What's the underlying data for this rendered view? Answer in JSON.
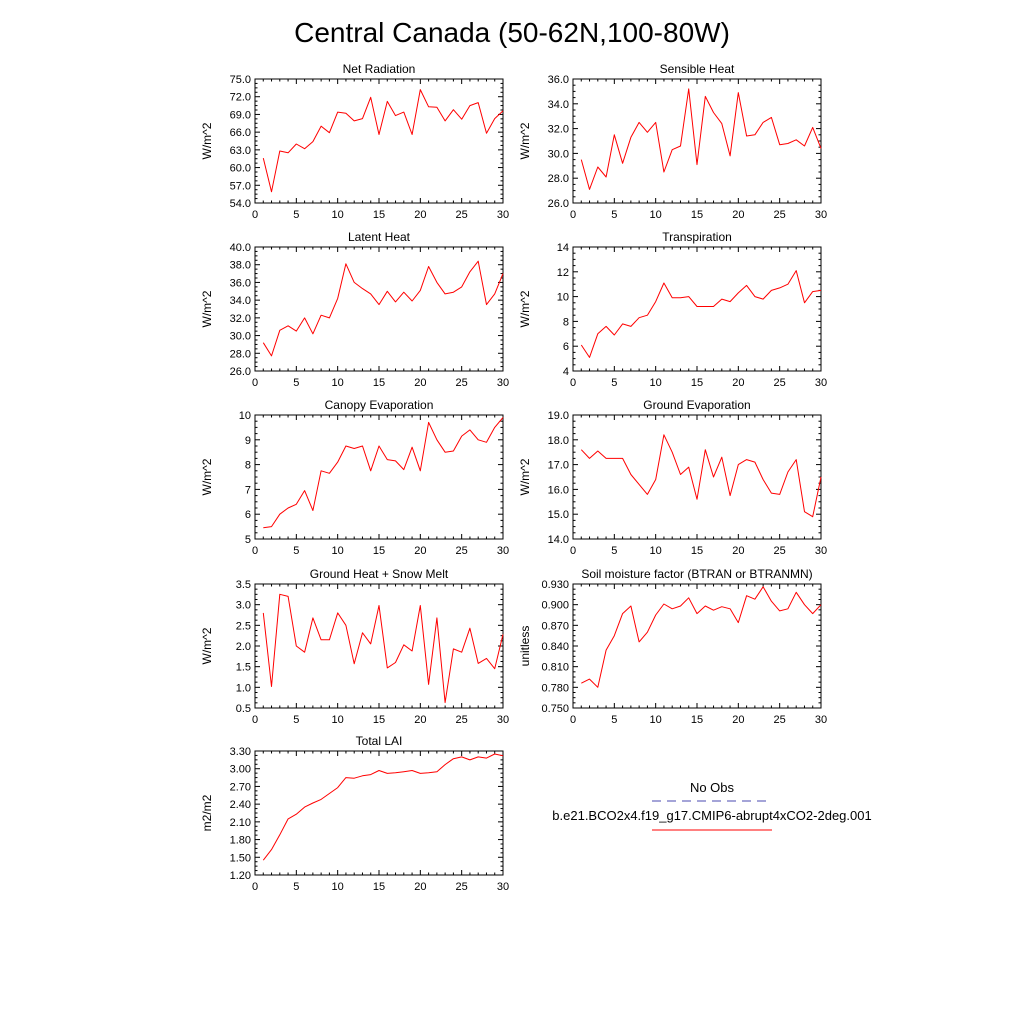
{
  "figure": {
    "title": "Central Canada (50-62N,100-80W)",
    "series_color": "#ff0000",
    "obs_color": "#4a4ab0"
  },
  "legend": {
    "obs_label": "No Obs",
    "model_label": "b.e21.BCO2x4.f19_g17.CMIP6-abrupt4xCO2-2deg.001"
  },
  "chart_data": [
    {
      "type": "line",
      "title": "Net Radiation",
      "ylabel": "W/m^2",
      "xlim": [
        0,
        30
      ],
      "xticks": [
        0,
        5,
        10,
        15,
        20,
        25,
        30
      ],
      "ylim": [
        54,
        75
      ],
      "yticks": [
        54,
        57,
        60,
        63,
        66,
        69,
        72,
        75
      ],
      "ydec": 1,
      "x": [
        1,
        2,
        3,
        4,
        5,
        6,
        7,
        8,
        9,
        10,
        11,
        12,
        13,
        14,
        15,
        16,
        17,
        18,
        19,
        20,
        21,
        22,
        23,
        24,
        25,
        26,
        27,
        28,
        29,
        30
      ],
      "y": [
        61.6,
        55.9,
        62.8,
        62.5,
        64.0,
        63.2,
        64.4,
        67.0,
        65.9,
        69.4,
        69.2,
        67.9,
        68.3,
        71.9,
        65.6,
        71.2,
        68.8,
        69.4,
        65.6,
        73.2,
        70.3,
        70.2,
        67.9,
        69.8,
        68.2,
        70.5,
        71.0,
        65.8,
        68.3,
        69.6
      ],
      "series_name": ""
    },
    {
      "type": "line",
      "title": "Sensible Heat",
      "ylabel": "W/m^2",
      "xlim": [
        0,
        30
      ],
      "xticks": [
        0,
        5,
        10,
        15,
        20,
        25,
        30
      ],
      "ylim": [
        26,
        36
      ],
      "yticks": [
        26,
        28,
        30,
        32,
        34,
        36
      ],
      "ydec": 1,
      "x": [
        1,
        2,
        3,
        4,
        5,
        6,
        7,
        8,
        9,
        10,
        11,
        12,
        13,
        14,
        15,
        16,
        17,
        18,
        19,
        20,
        21,
        22,
        23,
        24,
        25,
        26,
        27,
        28,
        29,
        30
      ],
      "y": [
        29.5,
        27.1,
        28.9,
        28.1,
        31.5,
        29.2,
        31.3,
        32.5,
        31.7,
        32.5,
        28.5,
        30.3,
        30.6,
        35.2,
        29.1,
        34.6,
        33.3,
        32.4,
        29.8,
        34.9,
        31.4,
        31.5,
        32.5,
        32.9,
        30.7,
        30.8,
        31.1,
        30.6,
        32.1,
        30.4
      ],
      "series_name": ""
    },
    {
      "type": "line",
      "title": "Latent Heat",
      "ylabel": "W/m^2",
      "xlim": [
        0,
        30
      ],
      "xticks": [
        0,
        5,
        10,
        15,
        20,
        25,
        30
      ],
      "ylim": [
        26,
        40
      ],
      "yticks": [
        26,
        28,
        30,
        32,
        34,
        36,
        38,
        40
      ],
      "ydec": 1,
      "x": [
        1,
        2,
        3,
        4,
        5,
        6,
        7,
        8,
        9,
        10,
        11,
        12,
        13,
        14,
        15,
        16,
        17,
        18,
        19,
        20,
        21,
        22,
        23,
        24,
        25,
        26,
        27,
        28,
        29,
        30
      ],
      "y": [
        29.2,
        27.7,
        30.6,
        31.1,
        30.5,
        32.0,
        30.2,
        32.3,
        32.0,
        34.2,
        38.1,
        36.0,
        35.3,
        34.7,
        33.5,
        35.0,
        33.8,
        34.9,
        33.9,
        35.1,
        37.8,
        36.0,
        34.7,
        34.9,
        35.5,
        37.2,
        38.4,
        33.5,
        34.7,
        37.0
      ],
      "series_name": ""
    },
    {
      "type": "line",
      "title": "Transpiration",
      "ylabel": "W/m^2",
      "xlim": [
        0,
        30
      ],
      "xticks": [
        0,
        5,
        10,
        15,
        20,
        25,
        30
      ],
      "ylim": [
        4,
        14
      ],
      "yticks": [
        4,
        6,
        8,
        10,
        12,
        14
      ],
      "ydec": 0,
      "x": [
        1,
        2,
        3,
        4,
        5,
        6,
        7,
        8,
        9,
        10,
        11,
        12,
        13,
        14,
        15,
        16,
        17,
        18,
        19,
        20,
        21,
        22,
        23,
        24,
        25,
        26,
        27,
        28,
        29,
        30
      ],
      "y": [
        6.1,
        5.1,
        7.0,
        7.6,
        6.9,
        7.8,
        7.6,
        8.3,
        8.5,
        9.6,
        11.1,
        9.9,
        9.9,
        10.0,
        9.2,
        9.2,
        9.2,
        9.8,
        9.6,
        10.3,
        10.9,
        10.0,
        9.8,
        10.5,
        10.7,
        11.0,
        12.1,
        9.5,
        10.4,
        10.5
      ],
      "series_name": ""
    },
    {
      "type": "line",
      "title": "Canopy Evaporation",
      "ylabel": "W/m^2",
      "xlim": [
        0,
        30
      ],
      "xticks": [
        0,
        5,
        10,
        15,
        20,
        25,
        30
      ],
      "ylim": [
        5,
        10
      ],
      "yticks": [
        5,
        6,
        7,
        8,
        9,
        10
      ],
      "ydec": 0,
      "x": [
        1,
        2,
        3,
        4,
        5,
        6,
        7,
        8,
        9,
        10,
        11,
        12,
        13,
        14,
        15,
        16,
        17,
        18,
        19,
        20,
        21,
        22,
        23,
        24,
        25,
        26,
        27,
        28,
        29,
        30
      ],
      "y": [
        5.45,
        5.5,
        6.0,
        6.25,
        6.4,
        6.95,
        6.15,
        7.75,
        7.65,
        8.1,
        8.75,
        8.65,
        8.75,
        7.75,
        8.75,
        8.2,
        8.15,
        7.8,
        8.7,
        7.75,
        9.7,
        9.0,
        8.5,
        8.55,
        9.15,
        9.4,
        9.0,
        8.9,
        9.5,
        9.9
      ],
      "series_name": ""
    },
    {
      "type": "line",
      "title": "Ground Evaporation",
      "ylabel": "W/m^2",
      "xlim": [
        0,
        30
      ],
      "xticks": [
        0,
        5,
        10,
        15,
        20,
        25,
        30
      ],
      "ylim": [
        14,
        19
      ],
      "yticks": [
        14,
        15,
        16,
        17,
        18,
        19
      ],
      "ydec": 1,
      "x": [
        1,
        2,
        3,
        4,
        5,
        6,
        7,
        8,
        9,
        10,
        11,
        12,
        13,
        14,
        15,
        16,
        17,
        18,
        19,
        20,
        21,
        22,
        23,
        24,
        25,
        26,
        27,
        28,
        29,
        30
      ],
      "y": [
        17.6,
        17.25,
        17.55,
        17.25,
        17.25,
        17.25,
        16.6,
        16.2,
        15.8,
        16.4,
        18.2,
        17.5,
        16.6,
        16.9,
        15.6,
        17.6,
        16.5,
        17.3,
        15.75,
        17.0,
        17.2,
        17.1,
        16.4,
        15.85,
        15.8,
        16.7,
        17.2,
        15.1,
        14.9,
        16.5
      ],
      "series_name": ""
    },
    {
      "type": "line",
      "title": "Ground Heat + Snow Melt",
      "ylabel": "W/m^2",
      "xlim": [
        0,
        30
      ],
      "xticks": [
        0,
        5,
        10,
        15,
        20,
        25,
        30
      ],
      "ylim": [
        0.5,
        3.5
      ],
      "yticks": [
        0.5,
        1.0,
        1.5,
        2.0,
        2.5,
        3.0,
        3.5
      ],
      "ydec": 1,
      "x": [
        1,
        2,
        3,
        4,
        5,
        6,
        7,
        8,
        9,
        10,
        11,
        12,
        13,
        14,
        15,
        16,
        17,
        18,
        19,
        20,
        21,
        22,
        23,
        24,
        25,
        26,
        27,
        28,
        29,
        30
      ],
      "y": [
        2.8,
        1.02,
        3.25,
        3.2,
        2.0,
        1.85,
        2.68,
        2.15,
        2.15,
        2.8,
        2.5,
        1.57,
        2.32,
        2.05,
        2.98,
        1.47,
        1.6,
        2.03,
        1.88,
        2.98,
        1.07,
        2.68,
        0.63,
        1.93,
        1.85,
        2.43,
        1.58,
        1.7,
        1.45,
        2.28
      ],
      "series_name": ""
    },
    {
      "type": "line",
      "title": "Soil moisture factor (BTRAN or BTRANMN)",
      "ylabel": "unitless",
      "xlim": [
        0,
        30
      ],
      "xticks": [
        0,
        5,
        10,
        15,
        20,
        25,
        30
      ],
      "ylim": [
        0.75,
        0.93
      ],
      "yticks": [
        0.75,
        0.78,
        0.81,
        0.84,
        0.87,
        0.9,
        0.93
      ],
      "ydec": 3,
      "x": [
        1,
        2,
        3,
        4,
        5,
        6,
        7,
        8,
        9,
        10,
        11,
        12,
        13,
        14,
        15,
        16,
        17,
        18,
        19,
        20,
        21,
        22,
        23,
        24,
        25,
        26,
        27,
        28,
        29,
        30
      ],
      "y": [
        0.786,
        0.792,
        0.78,
        0.834,
        0.855,
        0.887,
        0.898,
        0.846,
        0.86,
        0.885,
        0.901,
        0.894,
        0.898,
        0.91,
        0.887,
        0.898,
        0.892,
        0.897,
        0.894,
        0.874,
        0.913,
        0.908,
        0.926,
        0.905,
        0.891,
        0.894,
        0.918,
        0.9,
        0.887,
        0.9
      ],
      "series_name": ""
    },
    {
      "type": "line",
      "title": "Total LAI",
      "ylabel": "m2/m2",
      "xlim": [
        0,
        30
      ],
      "xticks": [
        0,
        5,
        10,
        15,
        20,
        25,
        30
      ],
      "ylim": [
        1.2,
        3.3
      ],
      "yticks": [
        1.2,
        1.5,
        1.8,
        2.1,
        2.4,
        2.7,
        3.0,
        3.3
      ],
      "ydec": 2,
      "x": [
        1,
        2,
        3,
        4,
        5,
        6,
        7,
        8,
        9,
        10,
        11,
        12,
        13,
        14,
        15,
        16,
        17,
        18,
        19,
        20,
        21,
        22,
        23,
        24,
        25,
        26,
        27,
        28,
        29,
        30
      ],
      "y": [
        1.45,
        1.63,
        1.88,
        2.15,
        2.23,
        2.35,
        2.42,
        2.48,
        2.58,
        2.68,
        2.85,
        2.84,
        2.88,
        2.9,
        2.97,
        2.92,
        2.93,
        2.95,
        2.97,
        2.92,
        2.93,
        2.95,
        3.07,
        3.17,
        3.2,
        3.15,
        3.2,
        3.18,
        3.25,
        3.22
      ],
      "series_name": ""
    }
  ]
}
